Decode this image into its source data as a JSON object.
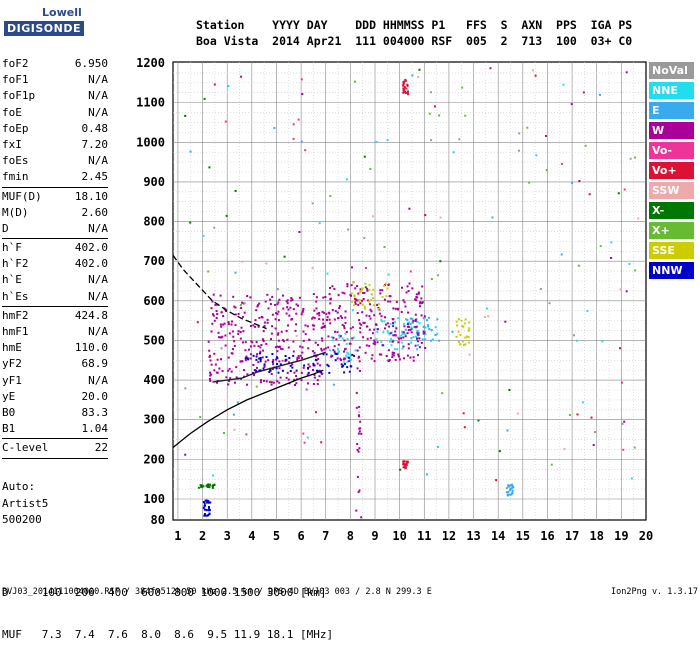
{
  "logo": {
    "line1": "Lowell",
    "line2": "DIGISONDE"
  },
  "header": {
    "line1": "Station    YYYY DAY    DDD HHMMSS P1   FFS  S  AXN  PPS  IGA PS",
    "line2": "Boa Vista  2014 Apr21  111 004000 RSF  005  2  713  100  03+ C0"
  },
  "params": [
    {
      "label": "foF2",
      "value": "6.950"
    },
    {
      "label": "foF1",
      "value": "N/A"
    },
    {
      "label": "foF1p",
      "value": "N/A"
    },
    {
      "label": "foE",
      "value": "N/A"
    },
    {
      "label": "foEp",
      "value": "0.48"
    },
    {
      "label": "fxI",
      "value": "7.20"
    },
    {
      "label": "foEs",
      "value": "N/A"
    },
    {
      "label": "fmin",
      "value": "2.45"
    },
    {
      "sep": true
    },
    {
      "label": "MUF(D)",
      "value": "18.10"
    },
    {
      "label": "M(D)",
      "value": "2.60"
    },
    {
      "label": "D",
      "value": "N/A"
    },
    {
      "sep": true
    },
    {
      "label": "h`F",
      "value": "402.0"
    },
    {
      "label": "h`F2",
      "value": "402.0"
    },
    {
      "label": "h`E",
      "value": "N/A"
    },
    {
      "label": "h`Es",
      "value": "N/A"
    },
    {
      "sep": true
    },
    {
      "label": "hmF2",
      "value": "424.8"
    },
    {
      "label": "hmF1",
      "value": "N/A"
    },
    {
      "label": "hmE",
      "value": "110.0"
    },
    {
      "label": "yF2",
      "value": "68.9"
    },
    {
      "label": "yF1",
      "value": "N/A"
    },
    {
      "label": "yE",
      "value": "20.0"
    },
    {
      "label": "B0",
      "value": "83.3"
    },
    {
      "label": "B1",
      "value": "1.04"
    },
    {
      "sep": true
    },
    {
      "label": "C-level",
      "value": "22"
    },
    {
      "sep": true
    }
  ],
  "auto": {
    "line1": "Auto:",
    "line2": "Artist5",
    "line3": "500200"
  },
  "dmuf": {
    "line1": "D     100  200  400  600  800 1000 1500 3000 [km]",
    "line2": "MUF   7.3  7.4  7.6  8.0  8.6  9.5 11.9 18.1 [MHz]"
  },
  "footer": {
    "left": "BVJ03_2014111004000.RSF / 384fx512h 50 kHz 2.5 km / DPS-4D BVJ03 003 / 2.8 N 299.3 E",
    "right": "Ion2Png v. 1.3.17"
  },
  "legend": [
    {
      "label": "NoVal",
      "color": "#9a9a9a"
    },
    {
      "label": "NNE",
      "color": "#22ddee"
    },
    {
      "label": "E",
      "color": "#3aaaee"
    },
    {
      "label": "W",
      "color": "#aa0099"
    },
    {
      "label": "Vo-",
      "color": "#ee3399"
    },
    {
      "label": "Vo+",
      "color": "#dd1133"
    },
    {
      "label": "SSW",
      "color": "#eeaaaa"
    },
    {
      "label": "X-",
      "color": "#007700"
    },
    {
      "label": "X+",
      "color": "#66bb33"
    },
    {
      "label": "SSE",
      "color": "#cccc00"
    },
    {
      "label": "NNW",
      "color": "#0000cc"
    }
  ],
  "chart_data": {
    "type": "scatter",
    "title": "",
    "xlabel": "",
    "ylabel": "",
    "xlim": [
      0.8,
      20
    ],
    "ylim": [
      80,
      1200
    ],
    "xticks": [
      1,
      2,
      3,
      4,
      5,
      6,
      7,
      8,
      9,
      10,
      11,
      12,
      13,
      14,
      15,
      16,
      17,
      18,
      19,
      20
    ],
    "yticks": [
      80,
      100,
      200,
      300,
      400,
      500,
      600,
      700,
      800,
      900,
      1000,
      1100,
      1200
    ],
    "grid": true,
    "legend_position": "right",
    "series": [
      {
        "name": "NNE",
        "clusters": [
          {
            "x": [
              7.0,
              8.2
            ],
            "y": [
              440,
              520
            ]
          },
          {
            "x": [
              9.0,
              11.5
            ],
            "y": [
              480,
              560
            ]
          }
        ]
      },
      {
        "name": "E",
        "clusters": [
          {
            "x": [
              10.0,
              11.6
            ],
            "y": [
              500,
              560
            ]
          },
          {
            "x": [
              14.3,
              14.6
            ],
            "y": [
              110,
              140
            ]
          }
        ]
      },
      {
        "name": "W",
        "clusters": [
          {
            "x": [
              2.2,
              7.0
            ],
            "y": [
              390,
              620
            ]
          },
          {
            "x": [
              7.0,
              11.0
            ],
            "y": [
              450,
              650
            ]
          },
          {
            "x": [
              8.2,
              8.4
            ],
            "y": [
              80,
              650
            ]
          }
        ]
      },
      {
        "name": "NNW",
        "clusters": [
          {
            "x": [
              3.5,
              8.2
            ],
            "y": [
              420,
              470
            ]
          },
          {
            "x": [
              2.0,
              2.3
            ],
            "y": [
              85,
              100
            ]
          }
        ]
      },
      {
        "name": "SSE",
        "clusters": [
          {
            "x": [
              12.2,
              12.8
            ],
            "y": [
              490,
              560
            ]
          },
          {
            "x": [
              8.0,
              9.5
            ],
            "y": [
              580,
              650
            ]
          }
        ]
      },
      {
        "name": "X-",
        "clusters": [
          {
            "x": [
              1.8,
              2.5
            ],
            "y": [
              130,
              140
            ]
          }
        ]
      },
      {
        "name": "Vo+",
        "clusters": [
          {
            "x": [
              10.1,
              10.3
            ],
            "y": [
              180,
              200
            ]
          },
          {
            "x": [
              10.1,
              10.3
            ],
            "y": [
              1120,
              1160
            ]
          }
        ]
      }
    ],
    "profile_solid": {
      "x": [
        0.8,
        1.5,
        2.2,
        3.0,
        3.8,
        4.6,
        5.4,
        6.0,
        6.5,
        6.9
      ],
      "y": [
        230,
        265,
        295,
        325,
        350,
        370,
        390,
        405,
        415,
        425
      ]
    },
    "profile_dashed": {
      "x": [
        0.8,
        1.2,
        1.8,
        2.4,
        3.0,
        3.6,
        4.2,
        4.6
      ],
      "y": [
        715,
        680,
        640,
        600,
        575,
        555,
        540,
        530
      ]
    },
    "trace_line": {
      "x": [
        2.4,
        3.0,
        3.6,
        4.2,
        4.8,
        5.4,
        6.0,
        6.5,
        7.0
      ],
      "y": [
        395,
        400,
        405,
        420,
        430,
        440,
        450,
        460,
        470
      ]
    }
  }
}
